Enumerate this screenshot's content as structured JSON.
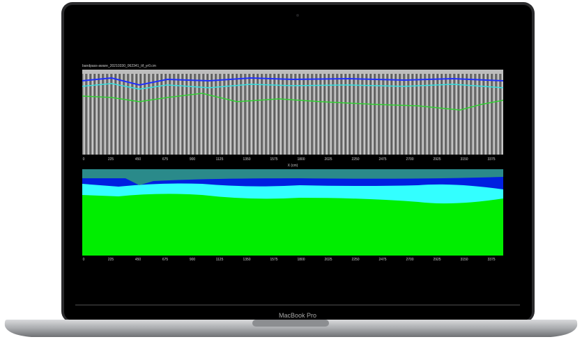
{
  "screen": {
    "top_panel": {
      "title": "bandpass-aware_20210330_062341_tif_yr0.cm",
      "x_label": "X (cm)",
      "x_ticks": [
        "0",
        "225",
        "450",
        "675",
        "900",
        "1125",
        "1350",
        "1575",
        "1800",
        "2025",
        "2250",
        "2475",
        "2700",
        "2925",
        "3150",
        "3375"
      ]
    },
    "bottom_panel": {
      "x_ticks": [
        "0",
        "225",
        "450",
        "675",
        "900",
        "1125",
        "1350",
        "1575",
        "1800",
        "2025",
        "2250",
        "2475",
        "2700",
        "2925",
        "3150",
        "3375"
      ]
    }
  },
  "laptop": {
    "label": "MacBook Pro"
  }
}
